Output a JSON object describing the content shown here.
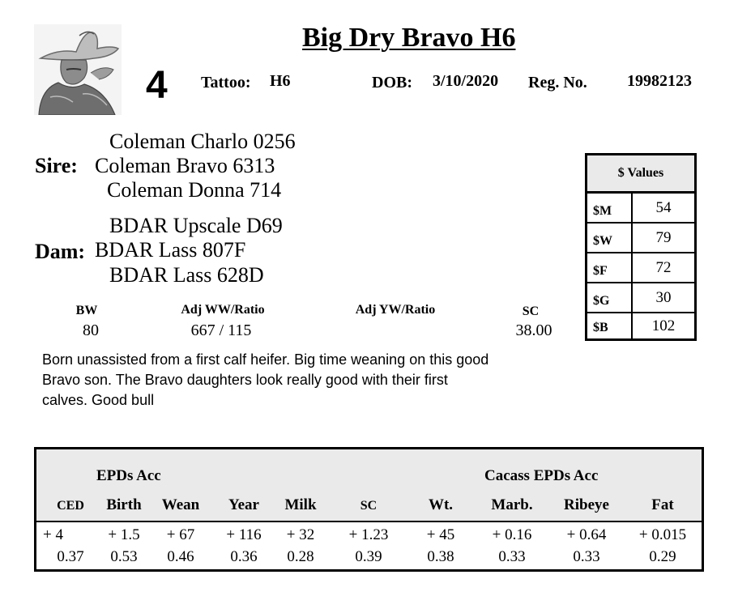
{
  "header": {
    "title": "Big Dry Bravo H6",
    "lot_number": "4",
    "tattoo_label": "Tattoo:",
    "tattoo_value": "H6",
    "dob_label": "DOB:",
    "dob_value": "3/10/2020",
    "reg_label": "Reg. No.",
    "reg_value": "19982123"
  },
  "pedigree": {
    "sire_label": "Sire:",
    "sire_sire": "Coleman Charlo 0256",
    "sire": "Coleman Bravo 6313",
    "sire_dam": "Coleman Donna  714",
    "dam_label": "Dam:",
    "dam_sire": "BDAR Upscale D69",
    "dam": "BDAR Lass 807F",
    "dam_dam": "BDAR Lass 628D"
  },
  "performance": {
    "bw_label": "BW",
    "bw_value": "80",
    "ww_label": "Adj WW/Ratio",
    "ww_value": "667 / 115",
    "yw_label": "Adj YW/Ratio",
    "yw_value": "",
    "sc_label": "SC",
    "sc_value": "38.00"
  },
  "comments": "Born unassisted from a first calf heifer.  Big time weaning on this good Bravo son.  The Bravo daughters look really good with their first calves.  Good bull",
  "dollar_values": {
    "title": "$ Values",
    "rows": [
      {
        "name": "$M",
        "value": "54"
      },
      {
        "name": "$W",
        "value": "79"
      },
      {
        "name": "$F",
        "value": "72"
      },
      {
        "name": "$G",
        "value": "30"
      },
      {
        "name": "$B",
        "value": "102"
      }
    ]
  },
  "epd_table": {
    "group_left": "EPDs   Acc",
    "group_right": "Cacass EPDs    Acc",
    "columns": [
      "CED",
      "Birth",
      "Wean",
      "Year",
      "Milk",
      "SC",
      "Wt.",
      "Marb.",
      "Ribeye",
      "Fat"
    ],
    "epds": [
      "+ 4",
      "+ 1.5",
      "+ 67",
      "+ 116",
      "+ 32",
      "+ 1.23",
      "+ 45",
      "+ 0.16",
      "+ 0.64",
      "+ 0.015"
    ],
    "acc": [
      "0.37",
      "0.53",
      "0.46",
      "0.36",
      "0.28",
      "0.39",
      "0.38",
      "0.33",
      "0.33",
      "0.29"
    ]
  },
  "colors": {
    "header_fill": "#eaeaea",
    "border": "#000000"
  }
}
